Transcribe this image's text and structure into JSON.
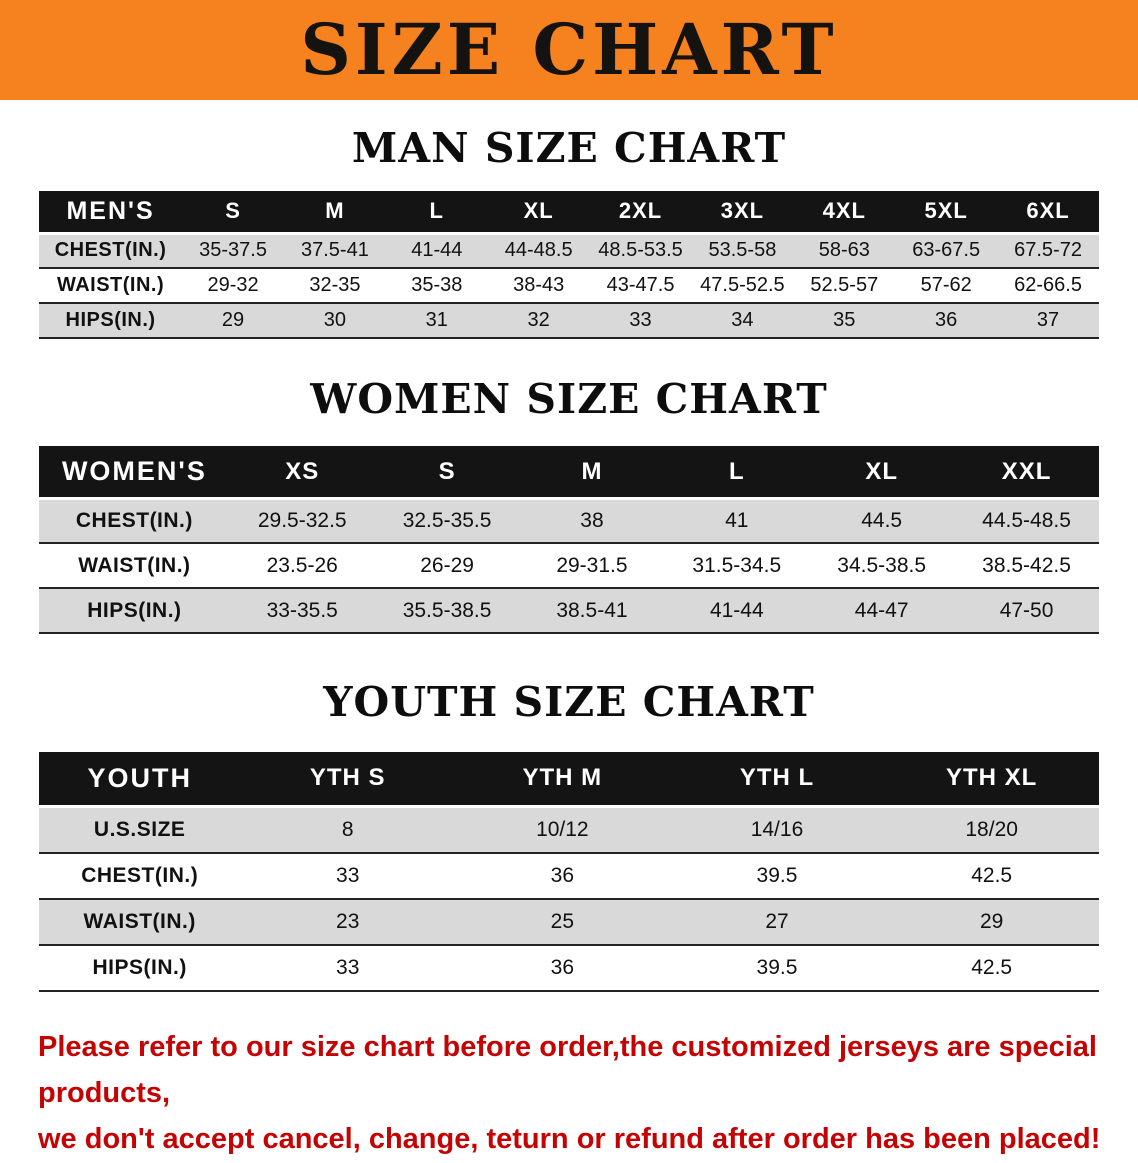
{
  "banner": {
    "title": "SIZE CHART"
  },
  "men": {
    "heading": "MAN SIZE CHART",
    "table": {
      "header": [
        "MEN'S",
        "S",
        "M",
        "L",
        "XL",
        "2XL",
        "3XL",
        "4XL",
        "5XL",
        "6XL"
      ],
      "rows": [
        {
          "label": "CHEST(IN.)",
          "values": [
            "35-37.5",
            "37.5-41",
            "41-44",
            "44-48.5",
            "48.5-53.5",
            "53.5-58",
            "58-63",
            "63-67.5",
            "67.5-72"
          ]
        },
        {
          "label": "WAIST(IN.)",
          "values": [
            "29-32",
            "32-35",
            "35-38",
            "38-43",
            "43-47.5",
            "47.5-52.5",
            "52.5-57",
            "57-62",
            "62-66.5"
          ]
        },
        {
          "label": "HIPS(IN.)",
          "values": [
            "29",
            "30",
            "31",
            "32",
            "33",
            "34",
            "35",
            "36",
            "37"
          ]
        }
      ]
    }
  },
  "women": {
    "heading": "WOMEN SIZE CHART",
    "table": {
      "header": [
        "WOMEN'S",
        "XS",
        "S",
        "M",
        "L",
        "XL",
        "XXL"
      ],
      "rows": [
        {
          "label": "CHEST(IN.)",
          "values": [
            "29.5-32.5",
            "32.5-35.5",
            "38",
            "41",
            "44.5",
            "44.5-48.5"
          ]
        },
        {
          "label": "WAIST(IN.)",
          "values": [
            "23.5-26",
            "26-29",
            "29-31.5",
            "31.5-34.5",
            "34.5-38.5",
            "38.5-42.5"
          ]
        },
        {
          "label": "HIPS(IN.)",
          "values": [
            "33-35.5",
            "35.5-38.5",
            "38.5-41",
            "41-44",
            "44-47",
            "47-50"
          ]
        }
      ]
    }
  },
  "youth": {
    "heading": "YOUTH SIZE CHART",
    "table": {
      "header": [
        "YOUTH",
        "YTH S",
        "YTH M",
        "YTH L",
        "YTH XL"
      ],
      "rows": [
        {
          "label": "U.S.SIZE",
          "values": [
            "8",
            "10/12",
            "14/16",
            "18/20"
          ]
        },
        {
          "label": "CHEST(IN.)",
          "values": [
            "33",
            "36",
            "39.5",
            "42.5"
          ]
        },
        {
          "label": "WAIST(IN.)",
          "values": [
            "23",
            "25",
            "27",
            "29"
          ]
        },
        {
          "label": "HIPS(IN.)",
          "values": [
            "33",
            "36",
            "39.5",
            "42.5"
          ]
        }
      ]
    }
  },
  "disclaimer": {
    "line1": "Please refer to our size chart before order,the customized jerseys are special products,",
    "line2": "we don't accept cancel, change, teturn or refund after order has been placed!"
  },
  "colors": {
    "banner_bg": "#f5821f",
    "table_header_bg": "#141414",
    "shaded_row_bg": "#d9d9d9",
    "disclaimer_text": "#c40404"
  }
}
